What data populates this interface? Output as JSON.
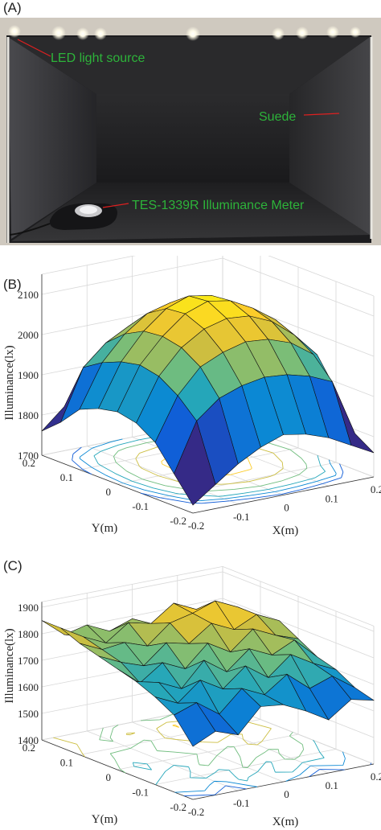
{
  "figure": {
    "panel_a_label": "(A)",
    "panel_b_label": "(B)",
    "panel_c_label": "(C)"
  },
  "photo": {
    "annotations": [
      {
        "text": "LED light source",
        "color": "#2db33a"
      },
      {
        "text": "Suede",
        "color": "#2db33a"
      },
      {
        "text": "TES-1339R Illuminance Meter",
        "color": "#2db33a"
      }
    ],
    "pointer_color": "#e02020"
  },
  "chart_data": [
    {
      "type": "surface",
      "panel": "(B)",
      "xlabel": "X(m)",
      "ylabel": "Y(m)",
      "zlabel": "Illuminance(lx)",
      "x": [
        -0.2,
        -0.15,
        -0.1,
        -0.05,
        0,
        0.05,
        0.1,
        0.15,
        0.2
      ],
      "y": [
        -0.2,
        -0.15,
        -0.1,
        -0.05,
        0,
        0.05,
        0.1,
        0.15,
        0.2
      ],
      "x_ticks": [
        "-0.2",
        "-0.1",
        "0",
        "0.1",
        "0.2"
      ],
      "y_ticks": [
        "-0.2",
        "-0.1",
        "0",
        "0.1",
        "0.2"
      ],
      "z_ticks": [
        "1700",
        "1800",
        "1900",
        "2000",
        "2100"
      ],
      "zlim": [
        1700,
        2150
      ],
      "clim": [
        1820,
        2120
      ],
      "contour_levels": 6,
      "grid": true,
      "z": [
        [
          1720,
          1760,
          1800,
          1830,
          1850,
          1840,
          1820,
          1790,
          1760
        ],
        [
          1780,
          1900,
          1945,
          1965,
          1975,
          1970,
          1955,
          1930,
          1790
        ],
        [
          1840,
          1945,
          2005,
          2030,
          2045,
          2040,
          2020,
          1980,
          1880
        ],
        [
          1870,
          1975,
          2035,
          2070,
          2085,
          2080,
          2055,
          2010,
          1950
        ],
        [
          1880,
          1985,
          2045,
          2090,
          2110,
          2100,
          2070,
          2030,
          1970
        ],
        [
          1870,
          1975,
          2040,
          2085,
          2105,
          2095,
          2065,
          2025,
          1960
        ],
        [
          1850,
          1955,
          2015,
          2055,
          2070,
          2065,
          2045,
          2000,
          1935
        ],
        [
          1800,
          1925,
          1975,
          2005,
          2015,
          2010,
          1995,
          1960,
          1860
        ],
        [
          1760,
          1810,
          1880,
          1900,
          1910,
          1905,
          1885,
          1850,
          1780
        ]
      ]
    },
    {
      "type": "surface",
      "panel": "(C)",
      "xlabel": "X(m)",
      "ylabel": "Y(m)",
      "zlabel": "Illuminance(lx)",
      "x": [
        -0.2,
        -0.15,
        -0.1,
        -0.05,
        0,
        0.05,
        0.1,
        0.15,
        0.2
      ],
      "y": [
        -0.2,
        -0.15,
        -0.1,
        -0.05,
        0,
        0.05,
        0.1,
        0.15,
        0.2
      ],
      "x_ticks": [
        "-0.2",
        "-0.1",
        "0",
        "0.1",
        "0.2"
      ],
      "y_ticks": [
        "-0.2",
        "-0.1",
        "0",
        "0.1",
        "0.2"
      ],
      "z_ticks": [
        "1400",
        "1500",
        "1600",
        "1700",
        "1800",
        "1900"
      ],
      "zlim": [
        1400,
        1920
      ],
      "clim": [
        1600,
        1900
      ],
      "contour_levels": 6,
      "grid": true,
      "z": [
        [
          1600,
          1640,
          1610,
          1700,
          1690,
          1650,
          1600,
          1660,
          1640
        ],
        [
          1690,
          1720,
          1660,
          1740,
          1700,
          1760,
          1690,
          1720,
          1660
        ],
        [
          1730,
          1690,
          1760,
          1710,
          1780,
          1720,
          1790,
          1740,
          1700
        ],
        [
          1760,
          1740,
          1700,
          1790,
          1730,
          1800,
          1760,
          1800,
          1720
        ],
        [
          1780,
          1710,
          1770,
          1730,
          1810,
          1760,
          1830,
          1790,
          1760
        ],
        [
          1800,
          1760,
          1730,
          1800,
          1780,
          1840,
          1800,
          1840,
          1800
        ],
        [
          1820,
          1780,
          1790,
          1760,
          1830,
          1850,
          1880,
          1840,
          1780
        ],
        [
          1850,
          1800,
          1760,
          1820,
          1800,
          1860,
          1820,
          1800,
          1760
        ],
        [
          1850,
          1780,
          1800,
          1760,
          1790,
          1740,
          1780,
          1720,
          1700
        ]
      ]
    }
  ]
}
